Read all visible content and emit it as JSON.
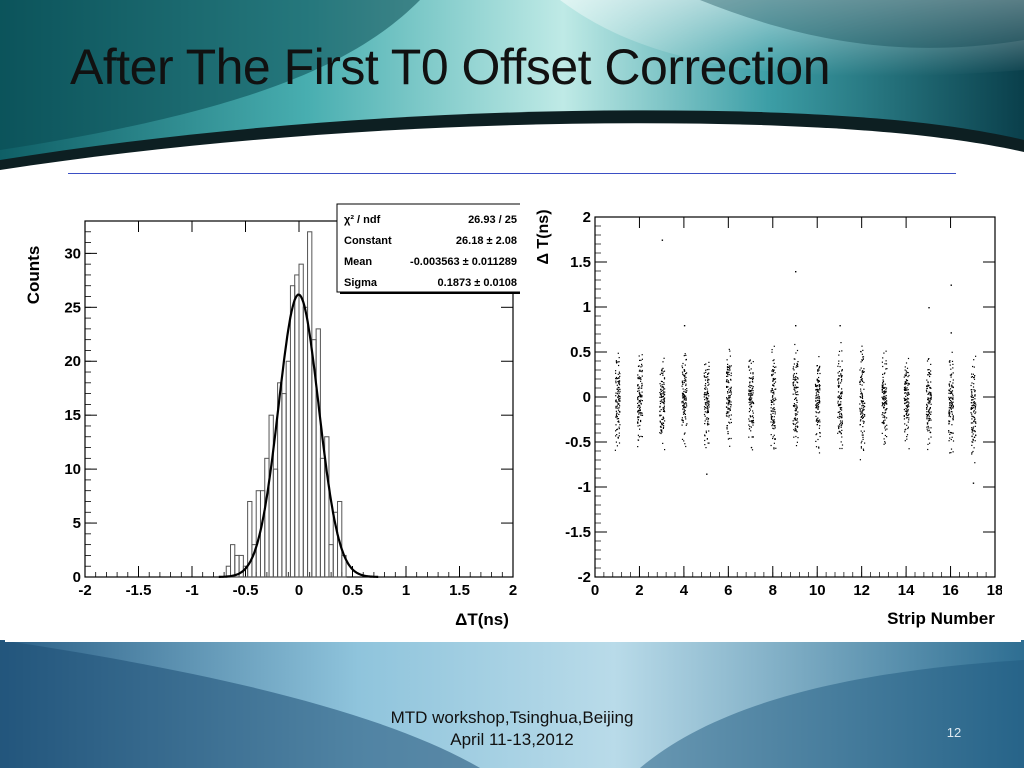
{
  "slide": {
    "title": "After The First T0 Offset Correction",
    "footer_line1": "MTD workshop,Tsinghua,Beijing",
    "footer_line2": "April 11-13,2012",
    "page_number": "12",
    "colors": {
      "teal_dark": "#0d4f58",
      "teal_mid": "#2a8e94",
      "teal_light": "#7fd3d0",
      "rule_blue": "#3b4fc4",
      "footer_blue": "#2f6f94"
    }
  },
  "chart_data": [
    {
      "type": "histogram",
      "xlabel": "ΔT(ns)",
      "ylabel": "Counts",
      "xlim": [
        -2,
        2
      ],
      "ylim": [
        0,
        33
      ],
      "x_ticks": [
        "-2",
        "-1.5",
        "-1",
        "-0.5",
        "0",
        "0.5",
        "1",
        "1.5",
        "2"
      ],
      "y_ticks": [
        "0",
        "5",
        "10",
        "15",
        "20",
        "25",
        "30"
      ],
      "bin_width": 0.04,
      "bins": [
        {
          "x0": -0.72,
          "count": 0
        },
        {
          "x0": -0.68,
          "count": 1
        },
        {
          "x0": -0.64,
          "count": 3
        },
        {
          "x0": -0.6,
          "count": 2
        },
        {
          "x0": -0.56,
          "count": 2
        },
        {
          "x0": -0.52,
          "count": 1
        },
        {
          "x0": -0.48,
          "count": 7
        },
        {
          "x0": -0.44,
          "count": 3
        },
        {
          "x0": -0.4,
          "count": 8
        },
        {
          "x0": -0.36,
          "count": 8
        },
        {
          "x0": -0.32,
          "count": 11
        },
        {
          "x0": -0.28,
          "count": 15
        },
        {
          "x0": -0.24,
          "count": 10
        },
        {
          "x0": -0.2,
          "count": 18
        },
        {
          "x0": -0.16,
          "count": 17
        },
        {
          "x0": -0.12,
          "count": 20
        },
        {
          "x0": -0.08,
          "count": 27
        },
        {
          "x0": -0.04,
          "count": 28
        },
        {
          "x0": 0.0,
          "count": 29
        },
        {
          "x0": 0.04,
          "count": 25
        },
        {
          "x0": 0.08,
          "count": 32
        },
        {
          "x0": 0.12,
          "count": 22
        },
        {
          "x0": 0.16,
          "count": 23
        },
        {
          "x0": 0.2,
          "count": 11
        },
        {
          "x0": 0.24,
          "count": 13
        },
        {
          "x0": 0.28,
          "count": 3
        },
        {
          "x0": 0.32,
          "count": 6
        },
        {
          "x0": 0.36,
          "count": 7
        },
        {
          "x0": 0.4,
          "count": 2
        },
        {
          "x0": 0.44,
          "count": 0
        }
      ],
      "fit": {
        "type": "gaussian",
        "constant": 26.18,
        "mean": -0.003563,
        "sigma": 0.1873
      },
      "stats_box": [
        {
          "label": "χ² / ndf",
          "value": "26.93 / 25"
        },
        {
          "label": "Constant",
          "value": "26.18 ± 2.08"
        },
        {
          "label": "Mean",
          "value": "-0.003563 ± 0.011289"
        },
        {
          "label": "Sigma",
          "value": "0.1873 ± 0.0108"
        }
      ]
    },
    {
      "type": "scatter",
      "xlabel": "Strip Number",
      "ylabel": "Δ T(ns)",
      "xlim": [
        0,
        18
      ],
      "ylim": [
        -2,
        2
      ],
      "x_ticks": [
        "0",
        "2",
        "4",
        "6",
        "8",
        "10",
        "12",
        "14",
        "16",
        "18"
      ],
      "y_ticks": [
        "-2",
        "-1.5",
        "-1",
        "-0.5",
        "0",
        "0.5",
        "1",
        "1.5",
        "2"
      ],
      "strips": [
        {
          "x": 1,
          "ymin": -0.6,
          "ymax": 0.5
        },
        {
          "x": 2,
          "ymin": -0.55,
          "ymax": 0.5
        },
        {
          "x": 3,
          "ymin": -0.6,
          "ymax": 0.5
        },
        {
          "x": 4,
          "ymin": -0.55,
          "ymax": 0.55
        },
        {
          "x": 5,
          "ymin": -0.6,
          "ymax": 0.5
        },
        {
          "x": 6,
          "ymin": -0.55,
          "ymax": 0.6
        },
        {
          "x": 7,
          "ymin": -0.6,
          "ymax": 0.5
        },
        {
          "x": 8,
          "ymin": -0.7,
          "ymax": 0.6
        },
        {
          "x": 9,
          "ymin": -0.6,
          "ymax": 0.6
        },
        {
          "x": 10,
          "ymin": -0.65,
          "ymax": 0.55
        },
        {
          "x": 11,
          "ymin": -0.7,
          "ymax": 0.65
        },
        {
          "x": 12,
          "ymin": -0.7,
          "ymax": 0.65
        },
        {
          "x": 13,
          "ymin": -0.55,
          "ymax": 0.55
        },
        {
          "x": 14,
          "ymin": -0.6,
          "ymax": 0.5
        },
        {
          "x": 15,
          "ymin": -0.6,
          "ymax": 0.55
        },
        {
          "x": 16,
          "ymin": -0.7,
          "ymax": 0.55
        },
        {
          "x": 17,
          "ymin": -0.75,
          "ymax": 0.5
        }
      ],
      "outliers": [
        {
          "x": 3,
          "y": 1.75
        },
        {
          "x": 4,
          "y": 0.8
        },
        {
          "x": 5,
          "y": -0.85
        },
        {
          "x": 9,
          "y": 1.4
        },
        {
          "x": 9,
          "y": 0.8
        },
        {
          "x": 11,
          "y": 0.8
        },
        {
          "x": 15,
          "y": 1.0
        },
        {
          "x": 16,
          "y": 1.25
        },
        {
          "x": 17,
          "y": -0.95
        },
        {
          "x": 16,
          "y": 0.72
        }
      ]
    }
  ]
}
